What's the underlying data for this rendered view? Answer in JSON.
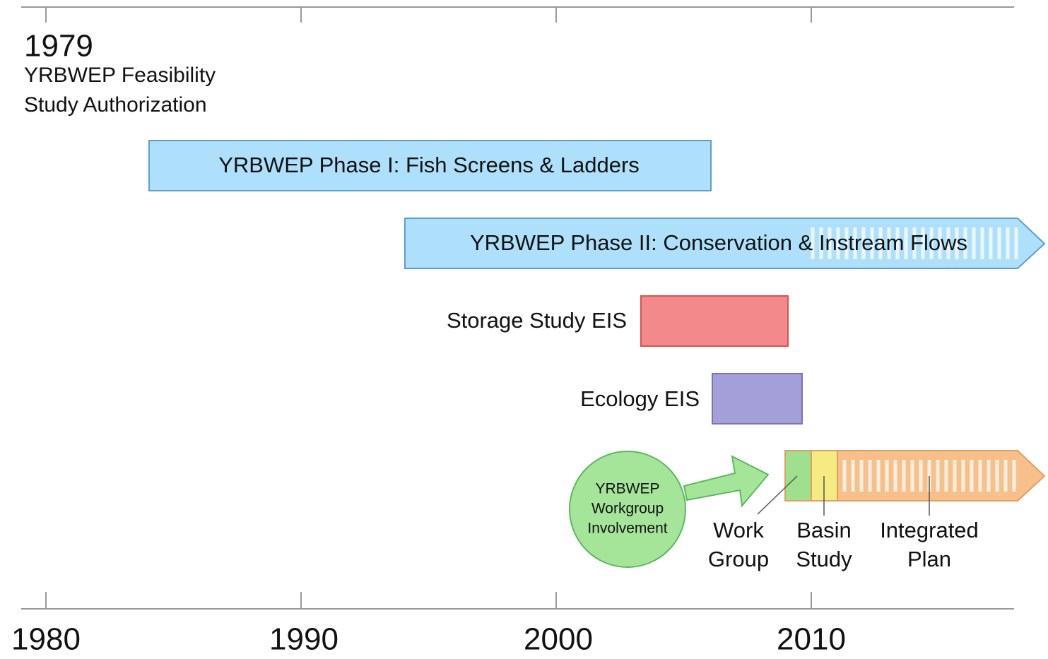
{
  "header": {
    "year": "1979",
    "title_lines": [
      "YRBWEP Feasibility",
      "Study Authorization"
    ]
  },
  "axis": {
    "ticks": [
      "1980",
      "1990",
      "2000",
      "2010"
    ]
  },
  "bars": [
    {
      "label": "YRBWEP Phase I: Fish Screens & Ladders"
    },
    {
      "label": "YRBWEP Phase II: Conservation & Instream Flows"
    },
    {
      "label": "Storage Study EIS"
    },
    {
      "label": "Ecology EIS"
    }
  ],
  "workgroup": {
    "label_lines": [
      "YRBWEP",
      "Workgroup",
      "Involvement"
    ]
  },
  "phases": [
    {
      "label_lines": [
        "Work",
        "Group"
      ]
    },
    {
      "label_lines": [
        "Basin",
        "Study"
      ]
    },
    {
      "label_lines": [
        "Integrated",
        "Plan"
      ]
    }
  ]
}
